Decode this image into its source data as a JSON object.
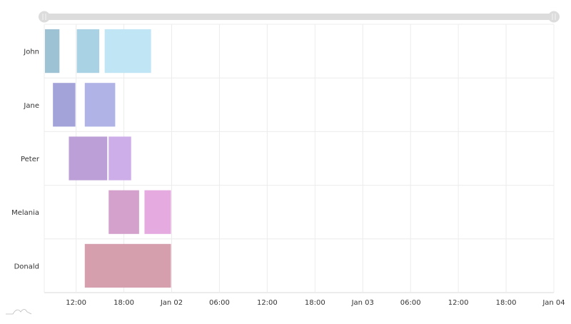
{
  "chart_data": {
    "type": "gantt",
    "x_axis": {
      "range": [
        "2019-01-01 08:00",
        "2019-01-04 00:00"
      ],
      "tick_labels": [
        {
          "t": "2019-01-01 12:00",
          "label": "12:00"
        },
        {
          "t": "2019-01-01 18:00",
          "label": "18:00"
        },
        {
          "t": "2019-01-02 00:00",
          "label": "Jan 02"
        },
        {
          "t": "2019-01-02 06:00",
          "label": "06:00"
        },
        {
          "t": "2019-01-02 12:00",
          "label": "12:00"
        },
        {
          "t": "2019-01-02 18:00",
          "label": "18:00"
        },
        {
          "t": "2019-01-03 00:00",
          "label": "Jan 03"
        },
        {
          "t": "2019-01-03 06:00",
          "label": "06:00"
        },
        {
          "t": "2019-01-03 12:00",
          "label": "12:00"
        },
        {
          "t": "2019-01-03 18:00",
          "label": "18:00"
        },
        {
          "t": "2019-01-04 00:00",
          "label": "Jan 04"
        }
      ]
    },
    "categories": [
      "John",
      "Jane",
      "Peter",
      "Melania",
      "Donald"
    ],
    "tasks": [
      {
        "category": "John",
        "start": "2019-01-01 08:00",
        "end": "2019-01-01 10:00",
        "color": "#9cc2d4"
      },
      {
        "category": "John",
        "start": "2019-01-01 12:00",
        "end": "2019-01-01 15:00",
        "color": "#a9d2e4"
      },
      {
        "category": "John",
        "start": "2019-01-01 15:30",
        "end": "2019-01-01 21:30",
        "color": "#c0e5f5"
      },
      {
        "category": "Jane",
        "start": "2019-01-01 09:00",
        "end": "2019-01-01 12:00",
        "color": "#a3a3d9"
      },
      {
        "category": "Jane",
        "start": "2019-01-01 13:00",
        "end": "2019-01-01 17:00",
        "color": "#afb3e6"
      },
      {
        "category": "Peter",
        "start": "2019-01-01 11:00",
        "end": "2019-01-01 16:00",
        "color": "#bc9fd6"
      },
      {
        "category": "Peter",
        "start": "2019-01-01 16:00",
        "end": "2019-01-01 19:00",
        "color": "#cdaee8"
      },
      {
        "category": "Melania",
        "start": "2019-01-01 16:00",
        "end": "2019-01-01 20:00",
        "color": "#d4a0cc"
      },
      {
        "category": "Melania",
        "start": "2019-01-01 20:30",
        "end": "2019-01-02 00:00",
        "color": "#e5aae0"
      },
      {
        "category": "Donald",
        "start": "2019-01-01 13:00",
        "end": "2019-01-02 00:00",
        "color": "#d69fae"
      }
    ],
    "scrollbar": {
      "start": 0,
      "end": 1
    },
    "grid": true,
    "legend": "none"
  }
}
